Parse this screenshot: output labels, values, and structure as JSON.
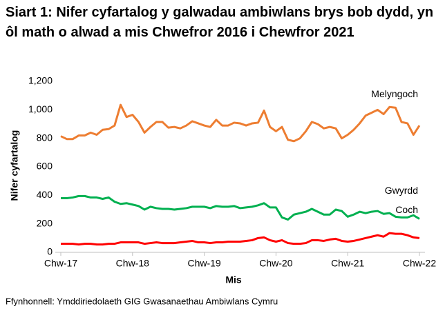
{
  "chart_data": {
    "type": "line",
    "title": "Siart 1: Nifer cyfartalog y galwadau ambiwlans brys bob dydd, yn ôl math o alwad a mis Chwefror 2016 i Chewfror 2021",
    "x_label": "Mis",
    "y_label": "Nifer cyfartalog",
    "source": "Ffynhonnell: Ymddiriedolaeth GIG Gwasanaethau Ambiwlans Cymru",
    "categories": [
      "Chw-17",
      null,
      null,
      null,
      null,
      null,
      null,
      null,
      null,
      null,
      null,
      null,
      "Chw-18",
      null,
      null,
      null,
      null,
      null,
      null,
      null,
      null,
      null,
      null,
      null,
      "Chw-19",
      null,
      null,
      null,
      null,
      null,
      null,
      null,
      null,
      null,
      null,
      null,
      "Chw-20",
      null,
      null,
      null,
      null,
      null,
      null,
      null,
      null,
      null,
      null,
      null,
      "Chw-21",
      null,
      null,
      null,
      null,
      null,
      null,
      null,
      null,
      null,
      null,
      null,
      "Chw-22"
    ],
    "series": [
      {
        "name": "Melyngoch",
        "color": "#ed7d31",
        "values": [
          815,
          795,
          795,
          820,
          820,
          840,
          825,
          860,
          865,
          890,
          1035,
          950,
          965,
          915,
          840,
          880,
          915,
          915,
          875,
          880,
          870,
          890,
          920,
          905,
          890,
          880,
          930,
          890,
          890,
          910,
          905,
          890,
          905,
          910,
          995,
          880,
          850,
          880,
          790,
          780,
          800,
          850,
          915,
          900,
          870,
          880,
          870,
          800,
          825,
          860,
          905,
          960,
          980,
          1000,
          970,
          1020,
          1015,
          915,
          905,
          825,
          890
        ]
      },
      {
        "name": "Gwyrdd",
        "color": "#00b050",
        "values": [
          380,
          380,
          385,
          395,
          395,
          385,
          385,
          375,
          385,
          355,
          340,
          345,
          335,
          325,
          300,
          320,
          310,
          305,
          305,
          300,
          305,
          310,
          320,
          320,
          320,
          310,
          325,
          320,
          320,
          325,
          310,
          315,
          320,
          330,
          345,
          315,
          315,
          245,
          230,
          265,
          275,
          285,
          305,
          285,
          265,
          265,
          300,
          290,
          250,
          265,
          285,
          275,
          285,
          290,
          270,
          275,
          250,
          245,
          245,
          260,
          235
        ]
      },
      {
        "name": "Coch",
        "color": "#ff0000",
        "values": [
          60,
          60,
          60,
          55,
          60,
          60,
          55,
          55,
          60,
          60,
          70,
          70,
          70,
          70,
          60,
          65,
          70,
          65,
          65,
          65,
          70,
          75,
          80,
          70,
          70,
          65,
          70,
          70,
          75,
          75,
          75,
          80,
          85,
          100,
          105,
          85,
          75,
          85,
          65,
          60,
          60,
          65,
          85,
          85,
          80,
          90,
          95,
          80,
          75,
          80,
          90,
          100,
          110,
          120,
          110,
          135,
          130,
          130,
          120,
          105,
          100
        ]
      }
    ],
    "ylim": [
      0,
      1200
    ],
    "yticks": [
      0,
      200,
      400,
      600,
      800,
      {
        "value": 1000,
        "label": "1,000"
      },
      {
        "value": 1200,
        "label": "1,200"
      }
    ],
    "grid": false
  }
}
